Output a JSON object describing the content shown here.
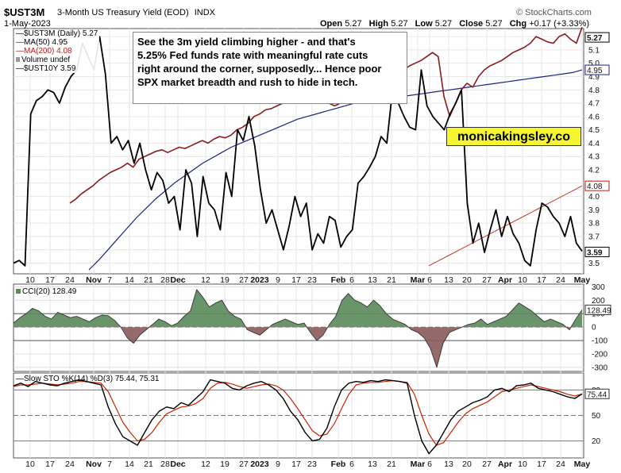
{
  "header": {
    "ticker": "$UST3M",
    "description": "3-Month US Treasury Yield (EOD)",
    "exchange": "INDX",
    "date": "1-May-2023",
    "watermark": "© StockCharts.com",
    "ohlc": {
      "open_label": "Open",
      "open": "5.27",
      "high_label": "High",
      "high": "5.27",
      "low_label": "Low",
      "low": "5.27",
      "close_label": "Close",
      "close": "5.27",
      "chg_label": "Chg",
      "chg": "+0.17 (+3.33%)"
    }
  },
  "legend": {
    "items": [
      {
        "text": "$UST3M (Daily) 5.27",
        "color": "#000000"
      },
      {
        "text": "MA(50) 4.95",
        "color": "#1a237e"
      },
      {
        "text": "MA(200) 4.08",
        "color": "#b71c1c"
      },
      {
        "text": "Volume undef",
        "color": "#444444"
      },
      {
        "text": "$UST10Y 3.59",
        "color": "#000000"
      }
    ]
  },
  "annotation": {
    "line1": "See the 3m yield climbing higher - and that's",
    "line2": "5.25% Fed funds rate with meaningful rate cuts",
    "line3": "right around the corner, supposedly... Hence poor",
    "line4": "SPX market breadth and rush to hide in tech."
  },
  "badge": "monicakingsley.co",
  "colors": {
    "ust3m": "#8b1a1a",
    "ma50": "#1a237e",
    "ma200": "#c0392b",
    "ust10y": "#000000",
    "cci_fill": "#5a8a5a",
    "cci_neg": "#8a5a5a",
    "sto_k": "#000000",
    "sto_d": "#cc2200"
  },
  "chart_data": [
    {
      "type": "line",
      "title": "$UST3M 3-Month US Treasury Yield (EOD)",
      "x_ticks": [
        "10",
        "17",
        "24",
        "Nov",
        "7",
        "14",
        "21",
        "28",
        "Dec",
        "12",
        "19",
        "27",
        "2023",
        "9",
        "17",
        "23",
        "Feb",
        "6",
        "13",
        "21",
        "Mar",
        "6",
        "13",
        "20",
        "27",
        "Apr",
        "10",
        "17",
        "24",
        "May"
      ],
      "y_ticks": [
        "3.5",
        "3.6",
        "3.7",
        "3.8",
        "3.9",
        "4.0",
        "4.1",
        "4.2",
        "4.3",
        "4.4",
        "4.5",
        "4.6",
        "4.7",
        "4.8",
        "4.9",
        "5.0",
        "5.1",
        "5.2"
      ],
      "ylim": [
        3.42,
        5.26
      ],
      "last_values": {
        "ust3m": "5.27",
        "ma50": "4.95",
        "ma200": "4.08",
        "ust10y": "3.59"
      },
      "series": [
        {
          "name": "$UST3M (Daily) 5.27",
          "values": [
            3.95,
            3.98,
            4.02,
            4.05,
            4.08,
            4.12,
            4.15,
            4.18,
            4.2,
            4.22,
            4.25,
            4.22,
            4.28,
            4.3,
            4.32,
            4.34,
            4.35,
            4.33,
            4.35,
            4.37,
            4.36,
            4.38,
            4.4,
            4.42,
            4.4,
            4.43,
            4.45,
            4.44,
            4.46,
            4.5,
            4.52,
            4.55,
            4.6,
            4.62,
            4.65,
            4.66,
            4.68,
            4.7,
            4.72,
            4.73,
            4.72,
            4.74,
            4.75,
            4.72,
            4.7,
            4.7,
            4.68,
            4.7,
            4.72,
            4.74,
            4.75,
            4.78,
            4.8,
            4.82,
            4.85,
            4.88,
            4.9,
            4.92,
            4.95,
            4.98,
            5.0,
            5.02,
            5.05,
            5.08,
            5.05,
            4.75,
            4.6,
            4.7,
            4.8,
            4.85,
            4.82,
            4.9,
            4.95,
            4.98,
            5.0,
            5.02,
            5.05,
            5.08,
            5.1,
            5.12,
            5.15,
            5.2,
            5.18,
            5.16,
            5.15,
            5.2,
            5.22,
            5.18,
            5.15,
            5.27
          ]
        },
        {
          "name": "MA(50) 4.95",
          "values": [
            3.45,
            3.52,
            3.6,
            3.68,
            3.76,
            3.84,
            3.91,
            3.98,
            4.04,
            4.1,
            4.15,
            4.2,
            4.25,
            4.29,
            4.33,
            4.37,
            4.4,
            4.43,
            4.46,
            4.49,
            4.52,
            4.55,
            4.58,
            4.6,
            4.62,
            4.64,
            4.66,
            4.68,
            4.7,
            4.71,
            4.72,
            4.73,
            4.74,
            4.75,
            4.76,
            4.77,
            4.78,
            4.79,
            4.8,
            4.81,
            4.82,
            4.83,
            4.84,
            4.85,
            4.86,
            4.87,
            4.88,
            4.89,
            4.9,
            4.91,
            4.92,
            4.93,
            4.95
          ]
        },
        {
          "name": "MA(200) 4.08",
          "values": [
            3.48,
            3.52,
            3.56,
            3.6,
            3.64,
            3.68,
            3.72,
            3.76,
            3.8,
            3.84,
            3.88,
            3.92,
            3.96,
            4.0,
            4.04,
            4.08
          ]
        },
        {
          "name": "$UST10Y 3.59",
          "values": [
            3.5,
            3.52,
            3.48,
            4.62,
            4.72,
            4.75,
            4.8,
            4.78,
            4.7,
            4.82,
            4.9,
            4.95,
            5.15,
            5.05,
            4.95,
            5.2,
            4.92,
            4.4,
            4.45,
            4.35,
            4.42,
            4.25,
            4.4,
            4.2,
            4.05,
            4.18,
            4.12,
            3.95,
            4.0,
            3.75,
            4.2,
            4.1,
            3.7,
            4.15,
            3.95,
            3.9,
            3.75,
            4.18,
            4.0,
            4.5,
            4.42,
            4.6,
            4.38,
            4.05,
            3.8,
            3.9,
            3.75,
            3.6,
            3.78,
            4.0,
            3.85,
            3.95,
            3.6,
            3.72,
            3.65,
            3.85,
            3.82,
            3.62,
            3.7,
            3.75,
            4.1,
            4.15,
            4.22,
            4.3,
            4.45,
            4.4,
            4.8,
            4.7,
            4.6,
            4.52,
            4.5,
            4.95,
            4.68,
            4.6,
            4.55,
            4.5,
            4.62,
            4.7,
            4.8,
            3.95,
            3.65,
            3.8,
            3.58,
            3.75,
            3.9,
            3.7,
            3.85,
            3.72,
            3.65,
            3.52,
            3.48,
            3.75,
            3.95,
            3.92,
            3.85,
            3.8,
            3.7,
            3.85,
            3.65,
            3.59
          ]
        }
      ]
    },
    {
      "type": "area",
      "title": "CCI(20) 128.49",
      "y_ticks": [
        "-300",
        "-200",
        "-100",
        "0",
        "100",
        "200",
        "300"
      ],
      "ylim": [
        -330,
        320
      ],
      "last_value": "128.49",
      "series": [
        {
          "name": "CCI(20) 128.49",
          "values": [
            30,
            70,
            100,
            140,
            120,
            80,
            60,
            110,
            90,
            70,
            80,
            60,
            40,
            70,
            90,
            85,
            50,
            0,
            -80,
            -120,
            -60,
            -20,
            20,
            60,
            40,
            10,
            30,
            80,
            120,
            280,
            220,
            150,
            180,
            200,
            120,
            80,
            60,
            -20,
            -40,
            -60,
            -20,
            20,
            40,
            60,
            40,
            20,
            30,
            -40,
            -100,
            -60,
            20,
            80,
            200,
            250,
            200,
            180,
            150,
            200,
            160,
            100,
            60,
            40,
            20,
            -20,
            -40,
            -80,
            -160,
            -300,
            -120,
            -40,
            -20,
            0,
            20,
            30,
            60,
            20,
            40,
            60,
            80,
            130,
            180,
            150,
            120,
            80,
            40,
            60,
            40,
            20,
            -20,
            60,
            128.49
          ]
        }
      ]
    },
    {
      "type": "line",
      "title": "Slow STO %K(14) %D(3) 75.44, 75.31",
      "y_ticks": [
        "20",
        "50",
        "80"
      ],
      "ylim": [
        0,
        100
      ],
      "last_values": {
        "k": "75.44",
        "d": "75.31"
      },
      "series": [
        {
          "name": "%K(14) 75.44",
          "values": [
            85,
            88,
            84,
            90,
            88,
            86,
            85,
            88,
            90,
            92,
            90,
            88,
            86,
            60,
            40,
            25,
            20,
            15,
            30,
            45,
            55,
            60,
            58,
            65,
            62,
            70,
            78,
            92,
            90,
            88,
            82,
            80,
            85,
            88,
            90,
            86,
            80,
            70,
            55,
            45,
            30,
            20,
            22,
            35,
            60,
            80,
            88,
            90,
            89,
            91,
            90,
            92,
            91,
            90,
            88,
            50,
            20,
            5,
            15,
            30,
            45,
            55,
            60,
            65,
            68,
            72,
            80,
            82,
            78,
            85,
            86,
            88,
            82,
            80,
            78,
            75,
            72,
            70,
            75.44
          ]
        },
        {
          "name": "%D(3) 75.31",
          "values": [
            84,
            86,
            86,
            87,
            88,
            87,
            86,
            87,
            88,
            90,
            90,
            89,
            88,
            78,
            60,
            42,
            30,
            20,
            22,
            30,
            42,
            52,
            56,
            60,
            61,
            64,
            70,
            82,
            88,
            89,
            87,
            84,
            82,
            84,
            86,
            87,
            85,
            80,
            70,
            58,
            45,
            32,
            26,
            28,
            40,
            58,
            75,
            86,
            88,
            89,
            89,
            90,
            91,
            90,
            89,
            75,
            50,
            28,
            15,
            18,
            30,
            42,
            52,
            58,
            62,
            66,
            72,
            78,
            80,
            82,
            84,
            86,
            84,
            82,
            80,
            78,
            75,
            73,
            75.31
          ]
        }
      ]
    }
  ]
}
